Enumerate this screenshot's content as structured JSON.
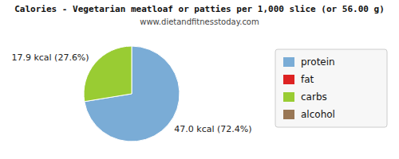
{
  "chart_data": {
    "type": "pie",
    "title": "Calories - Vegetarian meatloaf or patties per 1,000 slice (or 56.00 g)",
    "subtitle": "www.dietandfitnesstoday.com",
    "categories": [
      "protein",
      "fat",
      "carbs",
      "alcohol"
    ],
    "values": [
      72.4,
      null,
      27.6,
      null
    ],
    "value_labels": [
      "47.0 kcal (72.4%)",
      null,
      "17.9 kcal (27.6%)",
      null
    ],
    "colors": [
      "#7aacd6",
      "#dd2222",
      "#99cc33",
      "#997755"
    ],
    "data_labels": true,
    "legend": "right"
  }
}
